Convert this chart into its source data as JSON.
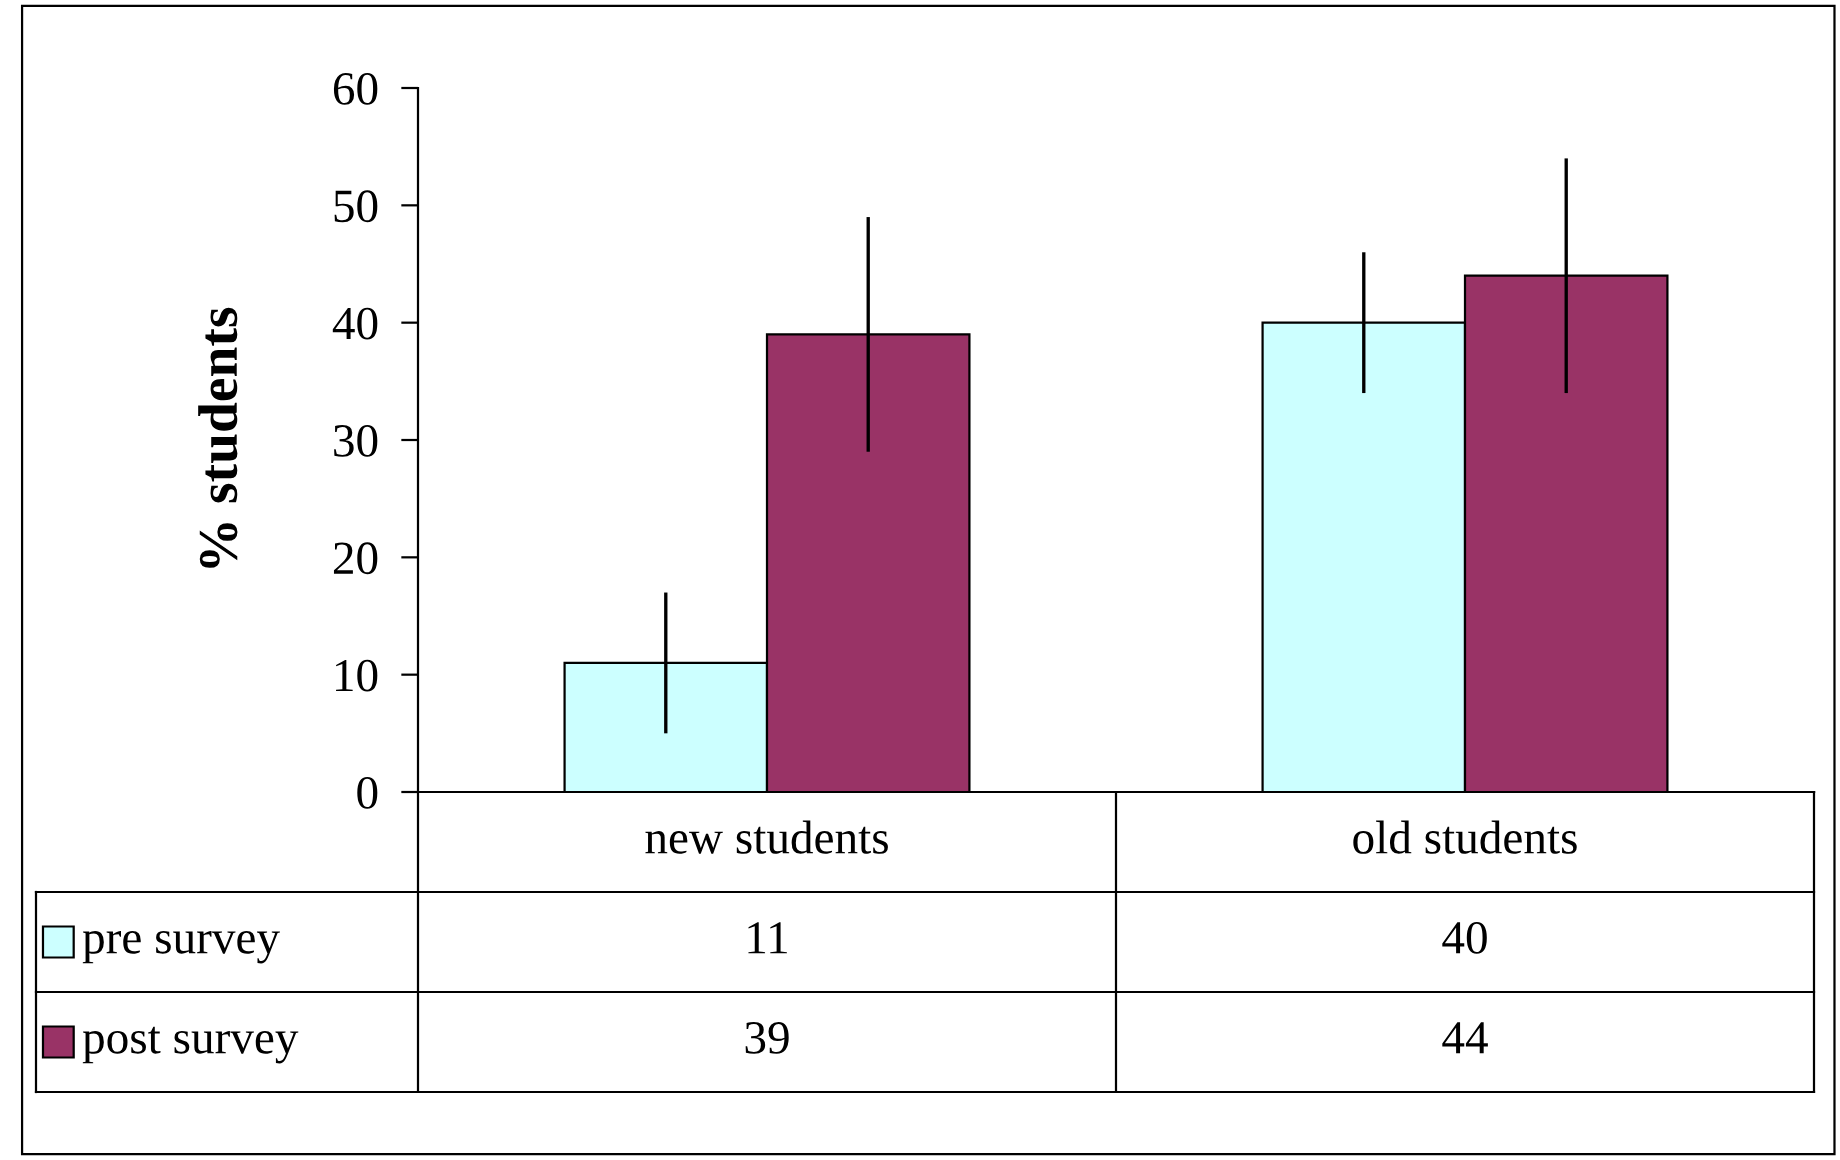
{
  "chart_data": {
    "type": "bar",
    "ylabel": "% students",
    "categories": [
      "new students",
      "old students"
    ],
    "series": [
      {
        "name": "pre survey",
        "color": "#ccffff",
        "values": [
          11,
          40
        ],
        "errors": [
          6,
          6
        ]
      },
      {
        "name": "post survey",
        "color": "#993366",
        "values": [
          39,
          44
        ],
        "errors": [
          10,
          10
        ]
      }
    ],
    "ylim": [
      0,
      60
    ],
    "yticks": [
      0,
      10,
      20,
      30,
      40,
      50,
      60
    ],
    "grid": false,
    "data_labels": true,
    "legend": "bottom left"
  }
}
